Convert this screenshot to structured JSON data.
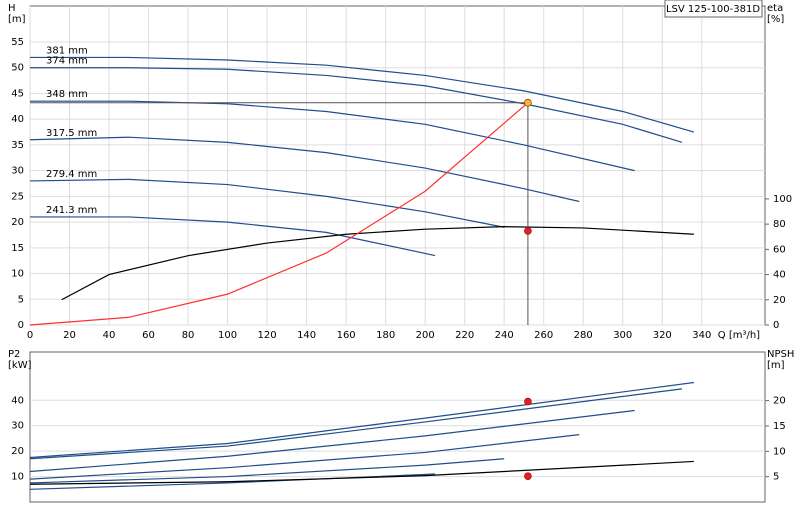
{
  "chart_data": [
    {
      "type": "line",
      "title": "LSV 125-100-381D",
      "ylabel": "H",
      "yunit": "[m]",
      "y2label": "eta",
      "y2unit": "[%]",
      "xlabel": "Q [m³/h]",
      "xlim": [
        0,
        372
      ],
      "xticks": [
        0,
        20,
        40,
        60,
        80,
        100,
        120,
        140,
        160,
        180,
        200,
        220,
        240,
        260,
        280,
        300,
        320,
        340
      ],
      "ylim": [
        0,
        62
      ],
      "yticks": [
        0,
        5,
        10,
        15,
        20,
        25,
        30,
        35,
        40,
        45,
        50,
        55
      ],
      "y2lim": [
        0,
        253
      ],
      "y2ticks": [
        0,
        20,
        40,
        60,
        80,
        100
      ],
      "grid": true,
      "series": [
        {
          "name": "381 mm",
          "color": "#1f4e8c",
          "x": [
            0,
            50,
            100,
            150,
            200,
            250,
            300,
            336
          ],
          "values": [
            52,
            52,
            51.5,
            50.5,
            48.5,
            45.5,
            41.5,
            37.5
          ]
        },
        {
          "name": "374 mm",
          "color": "#1f4e8c",
          "x": [
            0,
            50,
            100,
            150,
            200,
            250,
            300,
            330
          ],
          "values": [
            50,
            50,
            49.7,
            48.5,
            46.5,
            43,
            39,
            35.5
          ]
        },
        {
          "name": "348 mm",
          "color": "#1f4e8c",
          "x": [
            0,
            50,
            100,
            150,
            200,
            250,
            306
          ],
          "values": [
            43.5,
            43.5,
            43,
            41.5,
            39,
            35,
            30
          ]
        },
        {
          "name": "317.5 mm",
          "color": "#1f4e8c",
          "x": [
            0,
            50,
            100,
            150,
            200,
            250,
            278
          ],
          "values": [
            36,
            36.5,
            35.5,
            33.5,
            30.5,
            26.5,
            24
          ]
        },
        {
          "name": "279.4 mm",
          "color": "#1f4e8c",
          "x": [
            0,
            50,
            100,
            150,
            200,
            240
          ],
          "values": [
            28,
            28.3,
            27.3,
            25,
            22,
            19
          ]
        },
        {
          "name": "241.3 mm",
          "color": "#1f4e8c",
          "x": [
            0,
            50,
            100,
            150,
            205
          ],
          "values": [
            21,
            21,
            20,
            18,
            13.5
          ]
        },
        {
          "color": "#000000",
          "axis": "y2",
          "x": [
            16,
            40,
            80,
            120,
            160,
            200,
            240,
            280,
            336
          ],
          "values": [
            20,
            40,
            55,
            65,
            72,
            76,
            78,
            77,
            72
          ]
        },
        {
          "color": "#ff3030",
          "x": [
            0,
            50,
            100,
            150,
            200,
            252
          ],
          "values": [
            0,
            1.5,
            6,
            14,
            26,
            43.2
          ]
        }
      ],
      "markers": [
        {
          "x": 252,
          "value": 43.2,
          "color": "#f0c020"
        },
        {
          "x": 252,
          "value": 74.6,
          "axis": "y2",
          "color": "#e02020"
        }
      ]
    },
    {
      "type": "line",
      "ylabel": "P2",
      "yunit": "[kW]",
      "y2label": "NPSH",
      "y2unit": "[m]",
      "xlim": [
        0,
        372
      ],
      "ylim": [
        0,
        59
      ],
      "yticks": [
        10,
        20,
        30,
        40
      ],
      "y2lim": [
        0,
        29.6
      ],
      "y2ticks": [
        5,
        10,
        15,
        20
      ],
      "grid": true,
      "series": [
        {
          "color": "#1f4e8c",
          "x": [
            0,
            100,
            200,
            336
          ],
          "values": [
            17.5,
            23,
            33,
            47
          ]
        },
        {
          "color": "#1f4e8c",
          "x": [
            0,
            100,
            200,
            330
          ],
          "values": [
            17,
            22,
            31.5,
            44.5
          ]
        },
        {
          "color": "#1f4e8c",
          "x": [
            0,
            100,
            200,
            306
          ],
          "values": [
            12,
            18,
            26,
            36
          ]
        },
        {
          "color": "#1f4e8c",
          "x": [
            0,
            100,
            200,
            278
          ],
          "values": [
            9,
            13.5,
            19.5,
            26.5
          ]
        },
        {
          "color": "#1f4e8c",
          "x": [
            0,
            100,
            200,
            240
          ],
          "values": [
            7.5,
            10,
            14.5,
            17
          ]
        },
        {
          "color": "#1f4e8c",
          "x": [
            0,
            100,
            205
          ],
          "values": [
            5,
            7.5,
            11
          ]
        },
        {
          "color": "#000000",
          "axis": "y2",
          "x": [
            0,
            100,
            200,
            336
          ],
          "values": [
            3.5,
            4,
            5.2,
            8
          ]
        }
      ],
      "markers": [
        {
          "x": 252,
          "value": 39.5,
          "color": "#e02020"
        },
        {
          "x": 252,
          "value": 5.1,
          "axis": "y2",
          "color": "#e02020"
        }
      ]
    }
  ]
}
